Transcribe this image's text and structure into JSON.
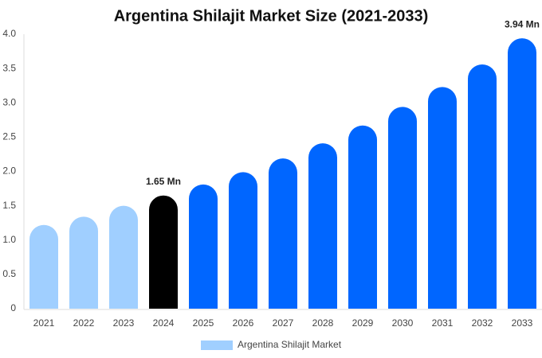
{
  "chart_data": {
    "type": "bar",
    "title": "Argentina Shilajit Market Size (2021-2033)",
    "categories": [
      "2021",
      "2022",
      "2023",
      "2024",
      "2025",
      "2026",
      "2027",
      "2028",
      "2029",
      "2030",
      "2031",
      "2032",
      "2033"
    ],
    "series": [
      {
        "name": "Argentina Shilajit Market",
        "color": "#a0cfff",
        "colors": [
          "#a0cfff",
          "#a0cfff",
          "#a0cfff",
          "#000000",
          "#0066ff",
          "#0066ff",
          "#0066ff",
          "#0066ff",
          "#0066ff",
          "#0066ff",
          "#0066ff",
          "#0066ff",
          "#0066ff"
        ],
        "values": [
          1.22,
          1.34,
          1.5,
          1.65,
          1.81,
          1.99,
          2.19,
          2.41,
          2.67,
          2.94,
          3.23,
          3.56,
          3.94
        ],
        "value_labels": [
          null,
          null,
          null,
          "1.65 Mn",
          null,
          null,
          null,
          null,
          null,
          null,
          null,
          null,
          "3.94 Mn"
        ]
      }
    ],
    "ylim": [
      0,
      4
    ],
    "yticks": [
      0,
      0.5,
      {
        "value": 1,
        "label": "1.0"
      },
      1.5,
      {
        "value": 2,
        "label": "2.0"
      },
      2.5,
      {
        "value": 3,
        "label": "3.0"
      },
      3.5,
      {
        "value": 4,
        "label": "4.0"
      }
    ],
    "grid": false
  }
}
